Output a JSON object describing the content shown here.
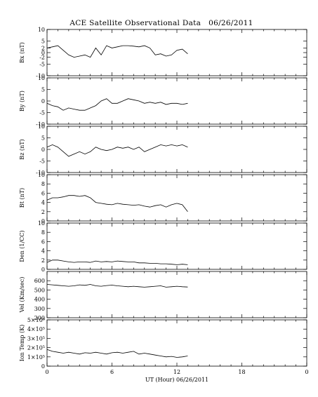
{
  "page": {
    "title": "ACE Satellite Observational Data   06/26/2011",
    "xlabel": "UT (Hour)  06/26/2011"
  },
  "chart_data": [
    {
      "type": "line",
      "ylabel": "Bx (nT)",
      "ylim": [
        -10,
        10
      ],
      "yticks": [
        "10",
        "5",
        "2",
        "0",
        "-2",
        "-5",
        "-10"
      ],
      "ytick_values": [
        10,
        5,
        2,
        0,
        -2,
        -5,
        -10
      ],
      "xlim": [
        0,
        24
      ],
      "xticks": [
        "0",
        "6",
        "12",
        "18",
        "0"
      ],
      "series": [
        {
          "x": [
            0,
            0.5,
            1,
            1.5,
            2,
            2.5,
            3,
            3.5,
            4,
            4.5,
            5,
            5.5,
            6,
            6.5,
            7,
            7.5,
            8,
            8.5,
            9,
            9.5,
            10,
            10.5,
            11,
            11.5,
            12,
            12.5,
            13
          ],
          "y": [
            2,
            2.5,
            3,
            1,
            -1,
            -2,
            -1.5,
            -1,
            -2,
            2,
            -1,
            3,
            2,
            2.5,
            3,
            3,
            2.8,
            2.5,
            3,
            2,
            -1,
            -0.5,
            -1.5,
            -1,
            1,
            1.5,
            -0.5
          ]
        }
      ]
    },
    {
      "type": "line",
      "ylabel": "By (nT)",
      "ylim": [
        -10,
        10
      ],
      "yticks": [
        "10",
        "5",
        "0",
        "-5",
        "-10"
      ],
      "ytick_values": [
        10,
        5,
        0,
        -5,
        -10
      ],
      "xlim": [
        0,
        24
      ],
      "series": [
        {
          "x": [
            0,
            0.5,
            1,
            1.5,
            2,
            2.5,
            3,
            3.5,
            4,
            4.5,
            5,
            5.5,
            6,
            6.5,
            7,
            7.5,
            8,
            8.5,
            9,
            9.5,
            10,
            10.5,
            11,
            11.5,
            12,
            12.5,
            13
          ],
          "y": [
            -1,
            -2,
            -2.5,
            -4,
            -3,
            -3.5,
            -4,
            -4,
            -3,
            -2,
            0,
            1,
            -1,
            -1,
            0,
            1,
            0.5,
            0,
            -1,
            -0.5,
            -1,
            -0.5,
            -1.5,
            -1,
            -1,
            -1.5,
            -1
          ]
        }
      ]
    },
    {
      "type": "line",
      "ylabel": "Bz (nT)",
      "ylim": [
        -10,
        10
      ],
      "yticks": [
        "10",
        "5",
        "0",
        "-5",
        "-10"
      ],
      "ytick_values": [
        10,
        5,
        0,
        -5,
        -10
      ],
      "xlim": [
        0,
        24
      ],
      "series": [
        {
          "x": [
            0,
            0.5,
            1,
            1.5,
            2,
            2.5,
            3,
            3.5,
            4,
            4.5,
            5,
            5.5,
            6,
            6.5,
            7,
            7.5,
            8,
            8.5,
            9,
            9.5,
            10,
            10.5,
            11,
            11.5,
            12,
            12.5,
            13
          ],
          "y": [
            1,
            2,
            1,
            -1,
            -3,
            -2,
            -1,
            -2,
            -1,
            1,
            0,
            -0.5,
            0,
            1,
            0.5,
            1,
            0,
            1,
            -1,
            0,
            1,
            2,
            1.5,
            2,
            1.5,
            2,
            1
          ]
        }
      ]
    },
    {
      "type": "line",
      "ylabel": "Bt (nT)",
      "ylim": [
        0,
        10
      ],
      "yticks": [
        "10",
        "8",
        "6",
        "4",
        "2",
        "0"
      ],
      "ytick_values": [
        10,
        8,
        6,
        4,
        2,
        0
      ],
      "xlim": [
        0,
        24
      ],
      "series": [
        {
          "x": [
            0,
            0.5,
            1,
            1.5,
            2,
            2.5,
            3,
            3.5,
            4,
            4.5,
            5,
            5.5,
            6,
            6.5,
            7,
            7.5,
            8,
            8.5,
            9,
            9.5,
            10,
            10.5,
            11,
            11.5,
            12,
            12.5,
            13
          ],
          "y": [
            4.5,
            5,
            5,
            5.2,
            5.5,
            5.5,
            5.3,
            5.5,
            5,
            4,
            3.8,
            3.6,
            3.5,
            3.8,
            3.6,
            3.5,
            3.4,
            3.5,
            3.2,
            3,
            3.3,
            3.5,
            3,
            3.5,
            3.8,
            3.5,
            2
          ]
        }
      ]
    },
    {
      "type": "line",
      "ylabel": "Den (1/CC)",
      "ylim": [
        0,
        10
      ],
      "yticks": [
        "10",
        "8",
        "6",
        "4",
        "2",
        "0"
      ],
      "ytick_values": [
        10,
        8,
        6,
        4,
        2,
        0
      ],
      "xlim": [
        0,
        24
      ],
      "series": [
        {
          "x": [
            0,
            0.5,
            1,
            1.5,
            2,
            2.5,
            3,
            3.5,
            4,
            4.5,
            5,
            5.5,
            6,
            6.5,
            7,
            7.5,
            8,
            8.5,
            9,
            9.5,
            10,
            10.5,
            11,
            11.5,
            12,
            12.5,
            13
          ],
          "y": [
            1.5,
            2,
            2,
            1.8,
            1.6,
            1.5,
            1.6,
            1.6,
            1.5,
            1.8,
            1.6,
            1.7,
            1.6,
            1.8,
            1.7,
            1.6,
            1.6,
            1.4,
            1.4,
            1.3,
            1.3,
            1.2,
            1.2,
            1.1,
            1,
            1.1,
            1
          ]
        }
      ]
    },
    {
      "type": "line",
      "ylabel": "Vel (Km/sec)",
      "ylim": [
        200,
        700
      ],
      "yticks": [
        "600",
        "500",
        "400",
        "300",
        "200"
      ],
      "ytick_values": [
        600,
        500,
        400,
        300,
        200
      ],
      "xlim": [
        0,
        24
      ],
      "series": [
        {
          "x": [
            0,
            0.5,
            1,
            1.5,
            2,
            2.5,
            3,
            3.5,
            4,
            4.5,
            5,
            5.5,
            6,
            6.5,
            7,
            7.5,
            8,
            8.5,
            9,
            9.5,
            10,
            10.5,
            11,
            11.5,
            12,
            12.5,
            13
          ],
          "y": [
            560,
            555,
            550,
            545,
            540,
            545,
            555,
            550,
            560,
            545,
            540,
            548,
            552,
            545,
            540,
            535,
            540,
            535,
            530,
            535,
            540,
            545,
            530,
            535,
            540,
            535,
            532
          ]
        }
      ]
    },
    {
      "type": "line",
      "ylabel": "Ion Temp (K)",
      "ylim": [
        0,
        500000
      ],
      "yticks": [
        "5×10⁵",
        "4×10⁵",
        "3×10⁵",
        "2×10⁵",
        "1×10⁵",
        "0"
      ],
      "ytick_values": [
        500000,
        400000,
        300000,
        200000,
        100000,
        0
      ],
      "xlim": [
        0,
        24
      ],
      "series": [
        {
          "x": [
            0,
            0.5,
            1,
            1.5,
            2,
            2.5,
            3,
            3.5,
            4,
            4.5,
            5,
            5.5,
            6,
            6.5,
            7,
            7.5,
            8,
            8.5,
            9,
            9.5,
            10,
            10.5,
            11,
            11.5,
            12,
            12.5,
            13
          ],
          "y": [
            180000,
            160000,
            150000,
            140000,
            150000,
            140000,
            130000,
            145000,
            140000,
            150000,
            140000,
            130000,
            145000,
            150000,
            140000,
            150000,
            160000,
            130000,
            140000,
            130000,
            120000,
            110000,
            100000,
            105000,
            95000,
            100000,
            110000
          ]
        }
      ]
    }
  ]
}
